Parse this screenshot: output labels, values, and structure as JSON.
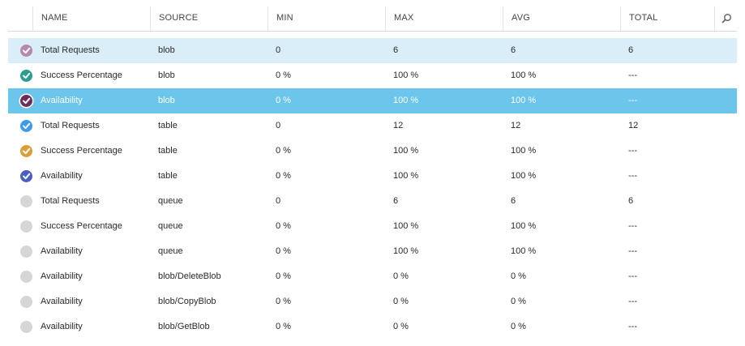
{
  "columns": {
    "name": "NAME",
    "source": "SOURCE",
    "min": "MIN",
    "max": "MAX",
    "avg": "AVG",
    "total": "TOTAL"
  },
  "search_icon": "search-icon",
  "rows": [
    {
      "name": "Total Requests",
      "source": "blob",
      "min": "0",
      "max": "6",
      "avg": "6",
      "total": "6",
      "checked": true,
      "color": "#b589a8",
      "state": "hover"
    },
    {
      "name": "Success Percentage",
      "source": "blob",
      "min": "0 %",
      "max": "100 %",
      "avg": "100 %",
      "total": "---",
      "checked": true,
      "color": "#2a9d8f",
      "state": ""
    },
    {
      "name": "Availability",
      "source": "blob",
      "min": "0 %",
      "max": "100 %",
      "avg": "100 %",
      "total": "---",
      "checked": true,
      "color": "#6b2d5c",
      "state": "selected"
    },
    {
      "name": "Total Requests",
      "source": "table",
      "min": "0",
      "max": "12",
      "avg": "12",
      "total": "12",
      "checked": true,
      "color": "#3d9be9",
      "state": ""
    },
    {
      "name": "Success Percentage",
      "source": "table",
      "min": "0 %",
      "max": "100 %",
      "avg": "100 %",
      "total": "---",
      "checked": true,
      "color": "#d9a03a",
      "state": ""
    },
    {
      "name": "Availability",
      "source": "table",
      "min": "0 %",
      "max": "100 %",
      "avg": "100 %",
      "total": "---",
      "checked": true,
      "color": "#4a5fc1",
      "state": ""
    },
    {
      "name": "Total Requests",
      "source": "queue",
      "min": "0",
      "max": "6",
      "avg": "6",
      "total": "6",
      "checked": false,
      "color": "#d6d6d6",
      "state": ""
    },
    {
      "name": "Success Percentage",
      "source": "queue",
      "min": "0 %",
      "max": "100 %",
      "avg": "100 %",
      "total": "---",
      "checked": false,
      "color": "#d6d6d6",
      "state": ""
    },
    {
      "name": "Availability",
      "source": "queue",
      "min": "0 %",
      "max": "100 %",
      "avg": "100 %",
      "total": "---",
      "checked": false,
      "color": "#d6d6d6",
      "state": ""
    },
    {
      "name": "Availability",
      "source": "blob/DeleteBlob",
      "min": "0 %",
      "max": "0 %",
      "avg": "0 %",
      "total": "---",
      "checked": false,
      "color": "#d6d6d6",
      "state": ""
    },
    {
      "name": "Availability",
      "source": "blob/CopyBlob",
      "min": "0 %",
      "max": "0 %",
      "avg": "0 %",
      "total": "---",
      "checked": false,
      "color": "#d6d6d6",
      "state": ""
    },
    {
      "name": "Availability",
      "source": "blob/GetBlob",
      "min": "0 %",
      "max": "0 %",
      "avg": "0 %",
      "total": "---",
      "checked": false,
      "color": "#d6d6d6",
      "state": ""
    }
  ]
}
